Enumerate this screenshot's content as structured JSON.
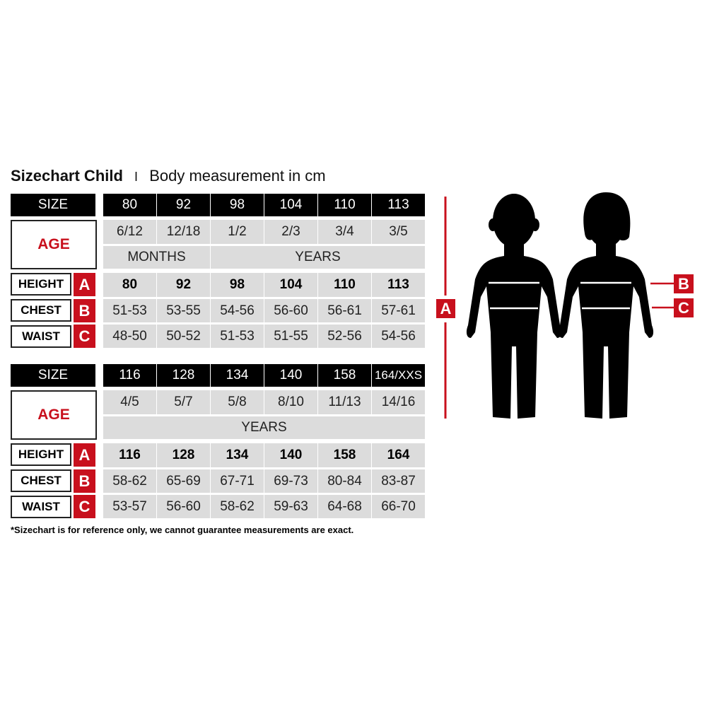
{
  "title": {
    "main": "Sizechart Child",
    "separator": "I",
    "subtitle": "Body measurement in cm"
  },
  "labels": {
    "size": "SIZE",
    "age": "AGE",
    "height": "HEIGHT",
    "chest": "CHEST",
    "waist": "WAIST",
    "a": "A",
    "b": "B",
    "c": "C"
  },
  "tables": [
    {
      "sizes": [
        "80",
        "92",
        "98",
        "104",
        "110",
        "113"
      ],
      "ages": [
        "6/12",
        "12/18",
        "1/2",
        "2/3",
        "3/4",
        "3/5"
      ],
      "age_units": [
        {
          "label": "MONTHS",
          "span": 2
        },
        {
          "label": "YEARS",
          "span": 4
        }
      ],
      "height": [
        "80",
        "92",
        "98",
        "104",
        "110",
        "113"
      ],
      "chest": [
        "51-53",
        "53-55",
        "54-56",
        "56-60",
        "56-61",
        "57-61"
      ],
      "waist": [
        "48-50",
        "50-52",
        "51-53",
        "51-55",
        "52-56",
        "54-56"
      ]
    },
    {
      "sizes": [
        "116",
        "128",
        "134",
        "140",
        "158",
        "164/XXS"
      ],
      "ages": [
        "4/5",
        "5/7",
        "5/8",
        "8/10",
        "11/13",
        "14/16"
      ],
      "age_units": [
        {
          "label": "YEARS",
          "span": 6
        }
      ],
      "height": [
        "116",
        "128",
        "134",
        "140",
        "158",
        "164"
      ],
      "chest": [
        "58-62",
        "65-69",
        "67-71",
        "69-73",
        "80-84",
        "83-87"
      ],
      "waist": [
        "53-57",
        "56-60",
        "58-62",
        "59-63",
        "64-68",
        "66-70"
      ]
    }
  ],
  "footnote": "*Sizechart is for reference only, we cannot guarantee measurements are exact.",
  "colors": {
    "accent": "#c8101d",
    "header": "#000000",
    "cell": "#dcdcdc"
  }
}
